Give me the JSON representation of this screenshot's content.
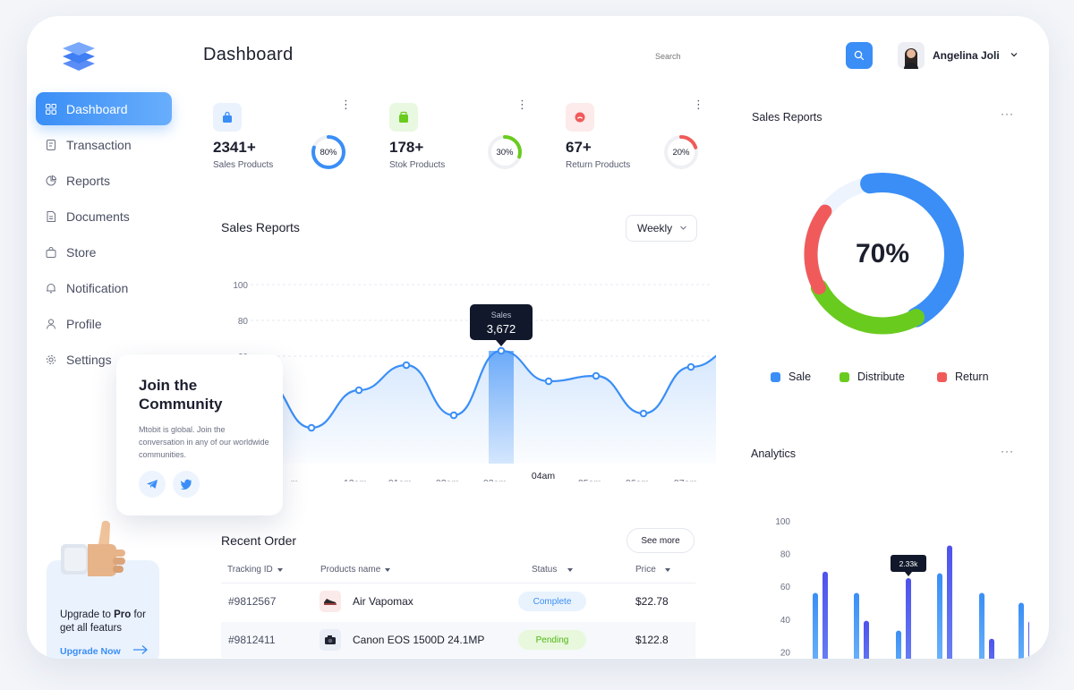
{
  "colors": {
    "accent": "#3a8ef6",
    "green": "#6acb1f",
    "red": "#f15a5a",
    "purple": "#5b5ef0"
  },
  "sidebar": {
    "items": [
      {
        "label": "Dashboard",
        "icon": "grid-icon",
        "active": true
      },
      {
        "label": "Transaction",
        "icon": "receipt-icon"
      },
      {
        "label": "Reports",
        "icon": "pie-icon"
      },
      {
        "label": "Documents",
        "icon": "document-icon"
      },
      {
        "label": "Store",
        "icon": "bag-icon"
      },
      {
        "label": "Notification",
        "icon": "bell-icon"
      },
      {
        "label": "Profile",
        "icon": "user-icon"
      },
      {
        "label": "Settings",
        "icon": "gear-icon"
      }
    ],
    "upgrade": {
      "line1": "Upgrade to ",
      "pro": "Pro",
      "line1_end": " for",
      "line2": "get all featurs",
      "link": "Upgrade Now"
    }
  },
  "header": {
    "title": "Dashboard",
    "search_placeholder": "Search",
    "user_name": "Angelina Joli"
  },
  "stats": [
    {
      "value": "2341+",
      "label": "Sales Products",
      "percent": 80,
      "percent_label": "80%",
      "color": "#3a8ef6",
      "icon": "bag-icon"
    },
    {
      "value": "178+",
      "label": "Stok Products",
      "percent": 30,
      "percent_label": "30%",
      "color": "#6acb1f",
      "icon": "box-icon"
    },
    {
      "value": "67+",
      "label": "Return Products",
      "percent": 20,
      "percent_label": "20%",
      "color": "#f15a5a",
      "icon": "return-icon"
    }
  ],
  "sales_reports": {
    "title": "Sales Reports",
    "period": "Weekly",
    "tooltip_label": "Sales",
    "tooltip_value": "3,672",
    "highlight_x": "04am"
  },
  "chart_data": [
    {
      "type": "area",
      "title": "Sales Reports",
      "y_ticks": [
        "100",
        "80",
        "60"
      ],
      "ylim": [
        0,
        100
      ],
      "x_labels": [
        "11pm",
        "12am",
        "01am",
        "02am",
        "03am",
        "04am",
        "05am",
        "06am",
        "07am"
      ],
      "x_labels_shown": [
        "m",
        "12am",
        "01am",
        "02am",
        "03am",
        "04am",
        "05am",
        "06am",
        "07am"
      ],
      "series": [
        {
          "values": [
            46,
            20,
            41,
            55,
            27,
            63,
            46,
            49,
            28,
            54,
            65
          ]
        }
      ]
    },
    {
      "type": "donut",
      "title": "Sales Reports",
      "center_label": "70%",
      "series": [
        {
          "name": "Sale",
          "value": 45
        },
        {
          "name": "Distribute",
          "value": 25
        },
        {
          "name": "Return",
          "value": 18
        }
      ]
    },
    {
      "type": "bar",
      "title": "Analytics",
      "y_ticks": [
        "100",
        "80",
        "60",
        "40",
        "20"
      ],
      "ylim": [
        0,
        100
      ],
      "tooltip_value": "2.33k",
      "series": [
        {
          "values": [
            56,
            56,
            33,
            68,
            56,
            50
          ]
        },
        {
          "values": [
            69,
            39,
            65,
            85,
            28,
            39
          ]
        }
      ]
    }
  ],
  "community": {
    "title": "Join the Community",
    "text": "Mtobit is global. Join the conversation in any of our worldwide communities."
  },
  "recent_order": {
    "title": "Recent Order",
    "see_more": "See more",
    "columns": [
      "Tracking ID",
      "Products name",
      "Status",
      "Price"
    ],
    "rows": [
      {
        "id": "#9812567",
        "product": "Air Vapomax",
        "status": "Complete",
        "price": "$22.78",
        "icon": "shoe-icon"
      },
      {
        "id": "#9812411",
        "product": "Canon EOS 1500D 24.1MP",
        "status": "Pending",
        "price": "$122.8",
        "icon": "camera-icon"
      }
    ]
  },
  "sales_donut": {
    "title": "Sales Reports",
    "center": "70%",
    "legend": [
      "Sale",
      "Distribute",
      "Return"
    ]
  },
  "analytics": {
    "title": "Analytics"
  }
}
